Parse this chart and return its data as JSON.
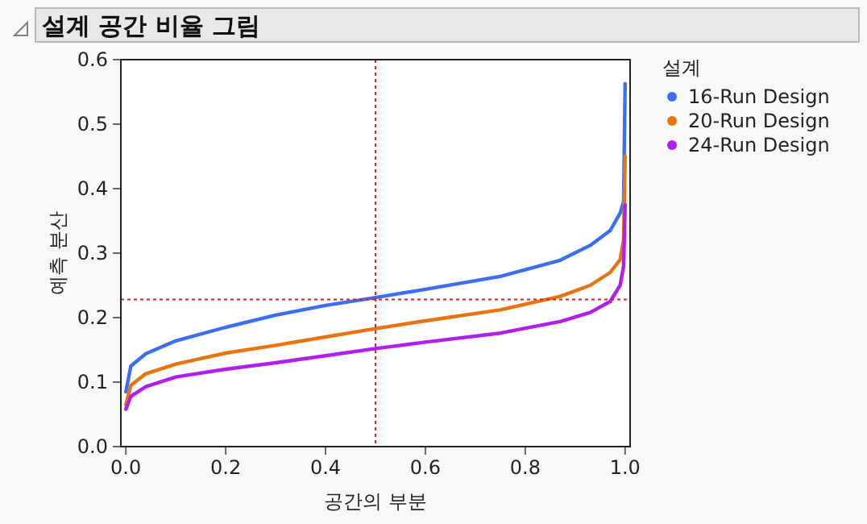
{
  "chart_data": {
    "type": "line",
    "title": "설계 공간 비율 그림",
    "xlabel": "공간의 부분",
    "ylabel": "예측 분산",
    "legend_title": "설계",
    "xlim": [
      -0.01,
      1.01
    ],
    "ylim": [
      0,
      0.6
    ],
    "xticks": [
      {
        "value": 0,
        "label": "0.0"
      },
      0.2,
      0.4,
      0.6,
      0.8,
      {
        "value": 1,
        "label": "1.0"
      }
    ],
    "yticks": [
      {
        "value": 0,
        "label": "0.0"
      },
      0.1,
      0.2,
      0.3,
      0.4,
      0.5,
      0.6
    ],
    "legend": "right",
    "marker": "none",
    "line_style": "solid",
    "grid": false,
    "ref_lines": [
      {
        "axis": "x",
        "value": 0.5,
        "color": "#e02020",
        "line_style": "dotted"
      },
      {
        "axis": "y",
        "value": 0.228,
        "color": "#e02020",
        "line_style": "dotted"
      }
    ],
    "x": [
      0,
      0.01,
      0.04,
      0.1,
      0.2,
      0.3,
      0.4,
      0.5,
      0.6,
      0.75,
      0.87,
      0.93,
      0.97,
      0.99,
      0.997,
      1.0
    ],
    "series": [
      {
        "name": "16-Run Design",
        "color": "#3b6ef5",
        "values": [
          0.085,
          0.125,
          0.144,
          0.164,
          0.185,
          0.204,
          0.219,
          0.231,
          0.244,
          0.264,
          0.289,
          0.312,
          0.335,
          0.362,
          0.38,
          0.563
        ]
      },
      {
        "name": "20-Run Design",
        "color": "#e8730f",
        "values": [
          0.065,
          0.095,
          0.113,
          0.128,
          0.145,
          0.157,
          0.17,
          0.183,
          0.195,
          0.212,
          0.233,
          0.25,
          0.27,
          0.29,
          0.32,
          0.45
        ]
      },
      {
        "name": "24-Run Design",
        "color": "#b11ef0",
        "values": [
          0.058,
          0.078,
          0.093,
          0.108,
          0.12,
          0.13,
          0.141,
          0.152,
          0.162,
          0.176,
          0.194,
          0.208,
          0.225,
          0.25,
          0.28,
          0.375
        ]
      }
    ]
  }
}
